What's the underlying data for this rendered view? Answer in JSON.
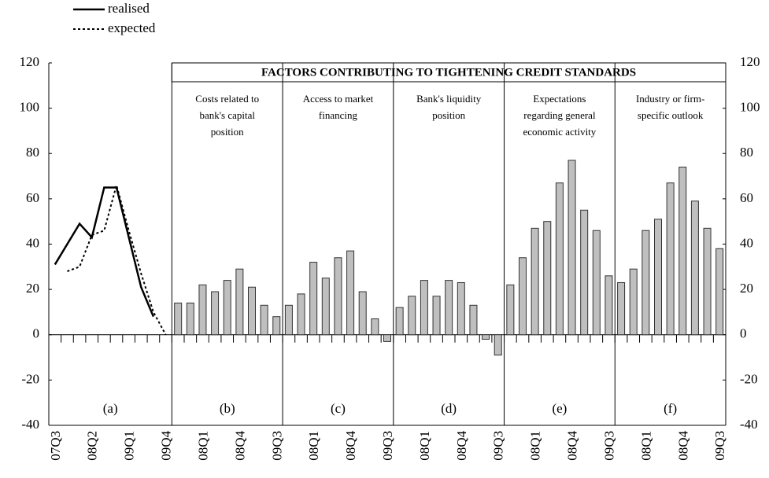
{
  "chart_data": {
    "type": "bar",
    "title": "FACTORS CONTRIBUTING TO TIGHTENING CREDIT STANDARDS",
    "ylim": [
      -40,
      120
    ],
    "yticks": [
      -40,
      -20,
      0,
      20,
      40,
      60,
      80,
      100,
      120
    ],
    "panels": [
      {
        "type": "line",
        "label": "(a)",
        "categories": [
          "07Q3",
          null,
          null,
          "08Q2",
          null,
          null,
          "09Q1",
          null,
          null,
          "09Q4"
        ],
        "series": [
          {
            "name": "realised",
            "color": "#000000",
            "style": "solid",
            "values": [
              31,
              40,
              49,
              43,
              65,
              65,
              43,
              21,
              8,
              null
            ]
          },
          {
            "name": "expected",
            "color": "#000000",
            "style": "dotted",
            "values": [
              null,
              28,
              30,
              44,
              46,
              66,
              46,
              27,
              10,
              0
            ]
          }
        ]
      },
      {
        "type": "bar",
        "label": "(b)",
        "title": [
          "Costs related to",
          "bank's capital",
          "position"
        ],
        "color": "#bfbfbf",
        "categories": [
          null,
          null,
          "08Q1",
          null,
          null,
          "08Q4",
          null,
          null,
          "09Q3"
        ],
        "values": [
          14,
          14,
          22,
          19,
          24,
          29,
          21,
          13,
          8
        ]
      },
      {
        "type": "bar",
        "label": "(c)",
        "title": [
          "Access to market",
          "financing"
        ],
        "color": "#bfbfbf",
        "categories": [
          null,
          null,
          "08Q1",
          null,
          null,
          "08Q4",
          null,
          null,
          "09Q3"
        ],
        "values": [
          13,
          18,
          32,
          25,
          34,
          37,
          19,
          7,
          -3
        ]
      },
      {
        "type": "bar",
        "label": "(d)",
        "title": [
          "Bank's liquidity",
          "position"
        ],
        "color": "#bfbfbf",
        "categories": [
          null,
          null,
          "08Q1",
          null,
          null,
          "08Q4",
          null,
          null,
          "09Q3"
        ],
        "values": [
          12,
          17,
          24,
          17,
          24,
          23,
          13,
          -2,
          -9
        ]
      },
      {
        "type": "bar",
        "label": "(e)",
        "title": [
          "Expectations",
          "regarding general",
          "economic activity"
        ],
        "color": "#bfbfbf",
        "categories": [
          null,
          null,
          "08Q1",
          null,
          null,
          "08Q4",
          null,
          null,
          "09Q3"
        ],
        "values": [
          22,
          34,
          47,
          50,
          67,
          77,
          55,
          46,
          26
        ]
      },
      {
        "type": "bar",
        "label": "(f)",
        "title": [
          "Industry or firm-",
          "specific outlook"
        ],
        "color": "#bfbfbf",
        "categories": [
          null,
          null,
          "08Q1",
          null,
          null,
          "08Q4",
          null,
          null,
          "09Q3"
        ],
        "values": [
          23,
          29,
          46,
          51,
          67,
          74,
          59,
          47,
          38
        ]
      }
    ]
  }
}
